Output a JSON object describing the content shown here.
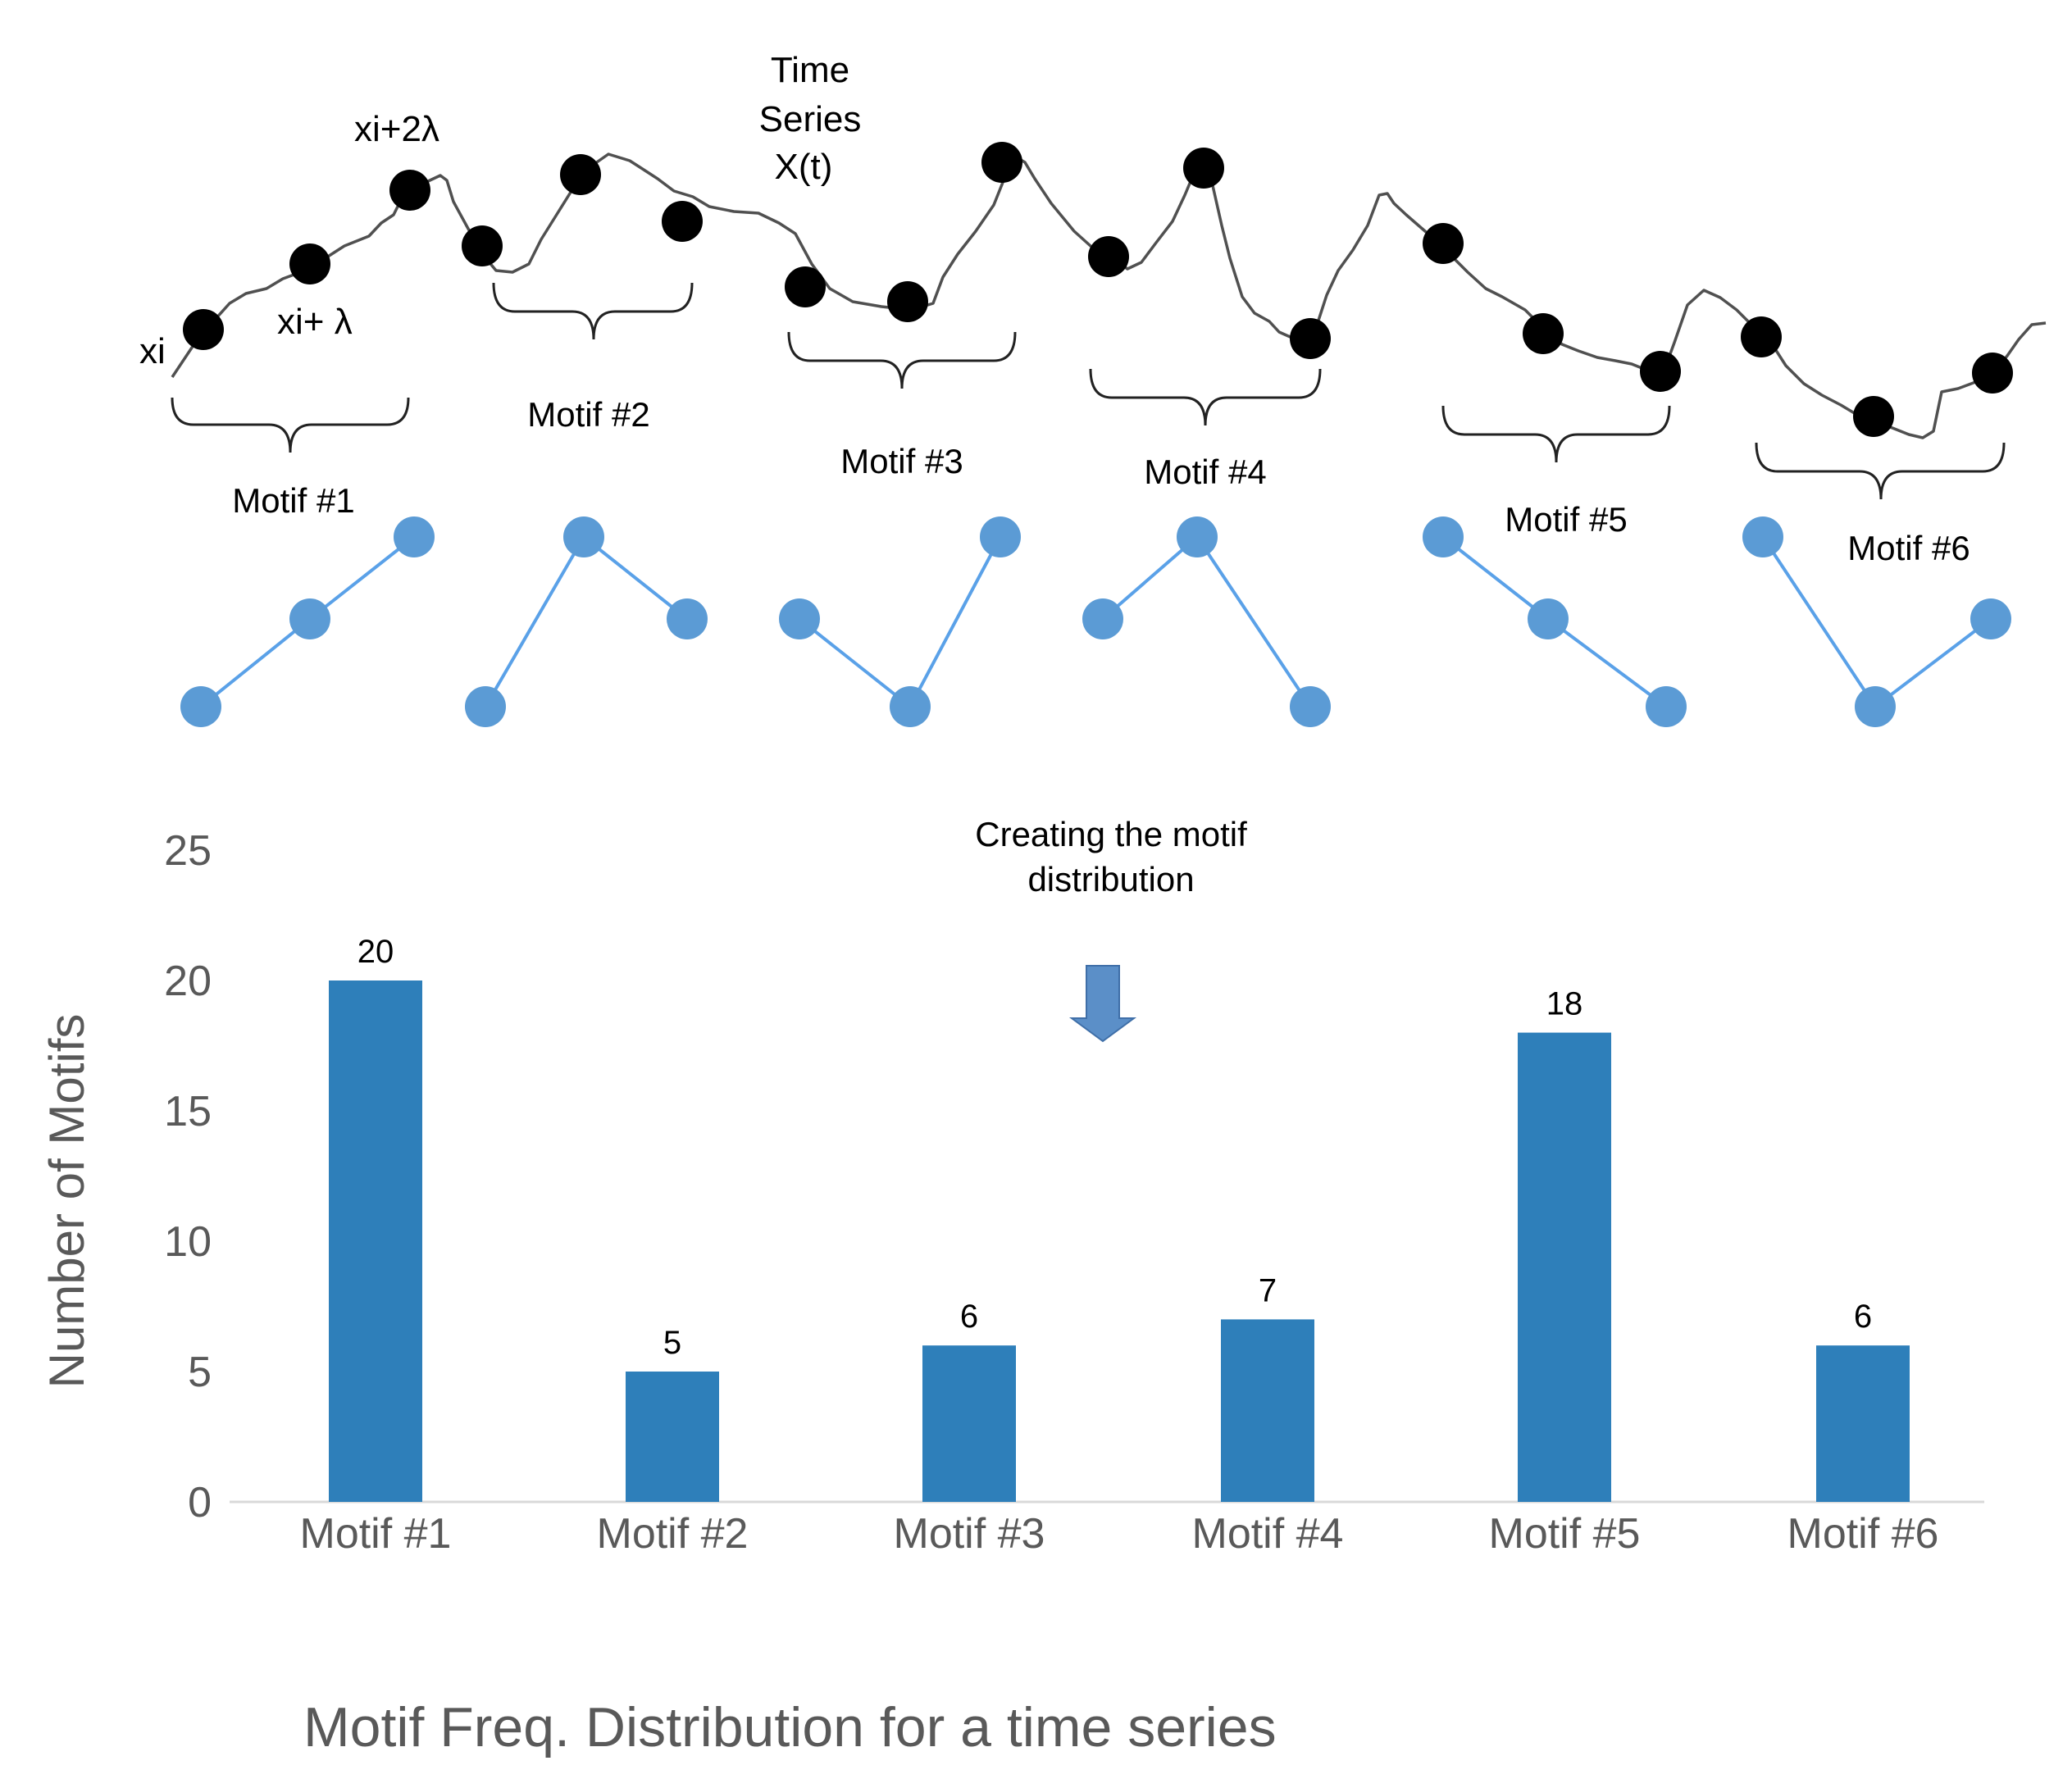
{
  "annotations": {
    "xi": "xi",
    "xi_lambda": "xi+ λ",
    "xi_2lambda": "xi+2λ",
    "time_series_1": "Time",
    "time_series_2": "Series",
    "time_series_3": "X(t)"
  },
  "motif_labels": [
    "Motif #1",
    "Motif #2",
    "Motif #3",
    "Motif #4",
    "Motif #5",
    "Motif #6"
  ],
  "motif_shapes": [
    [
      0,
      1,
      2
    ],
    [
      0,
      2,
      1
    ],
    [
      1,
      0,
      2
    ],
    [
      1,
      2,
      0
    ],
    [
      2,
      1,
      0
    ],
    [
      2,
      0,
      1
    ]
  ],
  "arrow_note": {
    "line1": "Creating the motif",
    "line2": "distribution"
  },
  "colors": {
    "bar": "#2e7fba",
    "motif_dot": "#5b9bd5",
    "motif_line": "#5aa1e8",
    "arrow": "#5b8fc8"
  },
  "chart_data": {
    "type": "bar",
    "title": "Motif Freq. Distribution for a time series",
    "xlabel": "",
    "ylabel": "Number of Motifs",
    "categories": [
      "Motif #1",
      "Motif #2",
      "Motif #3",
      "Motif #4",
      "Motif #5",
      "Motif #6"
    ],
    "values": [
      20,
      5,
      6,
      7,
      18,
      6
    ],
    "value_labels": [
      "20",
      "5",
      "6",
      "7",
      "18",
      "6"
    ],
    "ylim": [
      0,
      25
    ],
    "yticks": [
      0,
      5,
      10,
      15,
      20,
      25
    ],
    "ytick_labels": [
      "0",
      "5",
      "10",
      "15",
      "20",
      "25"
    ]
  }
}
